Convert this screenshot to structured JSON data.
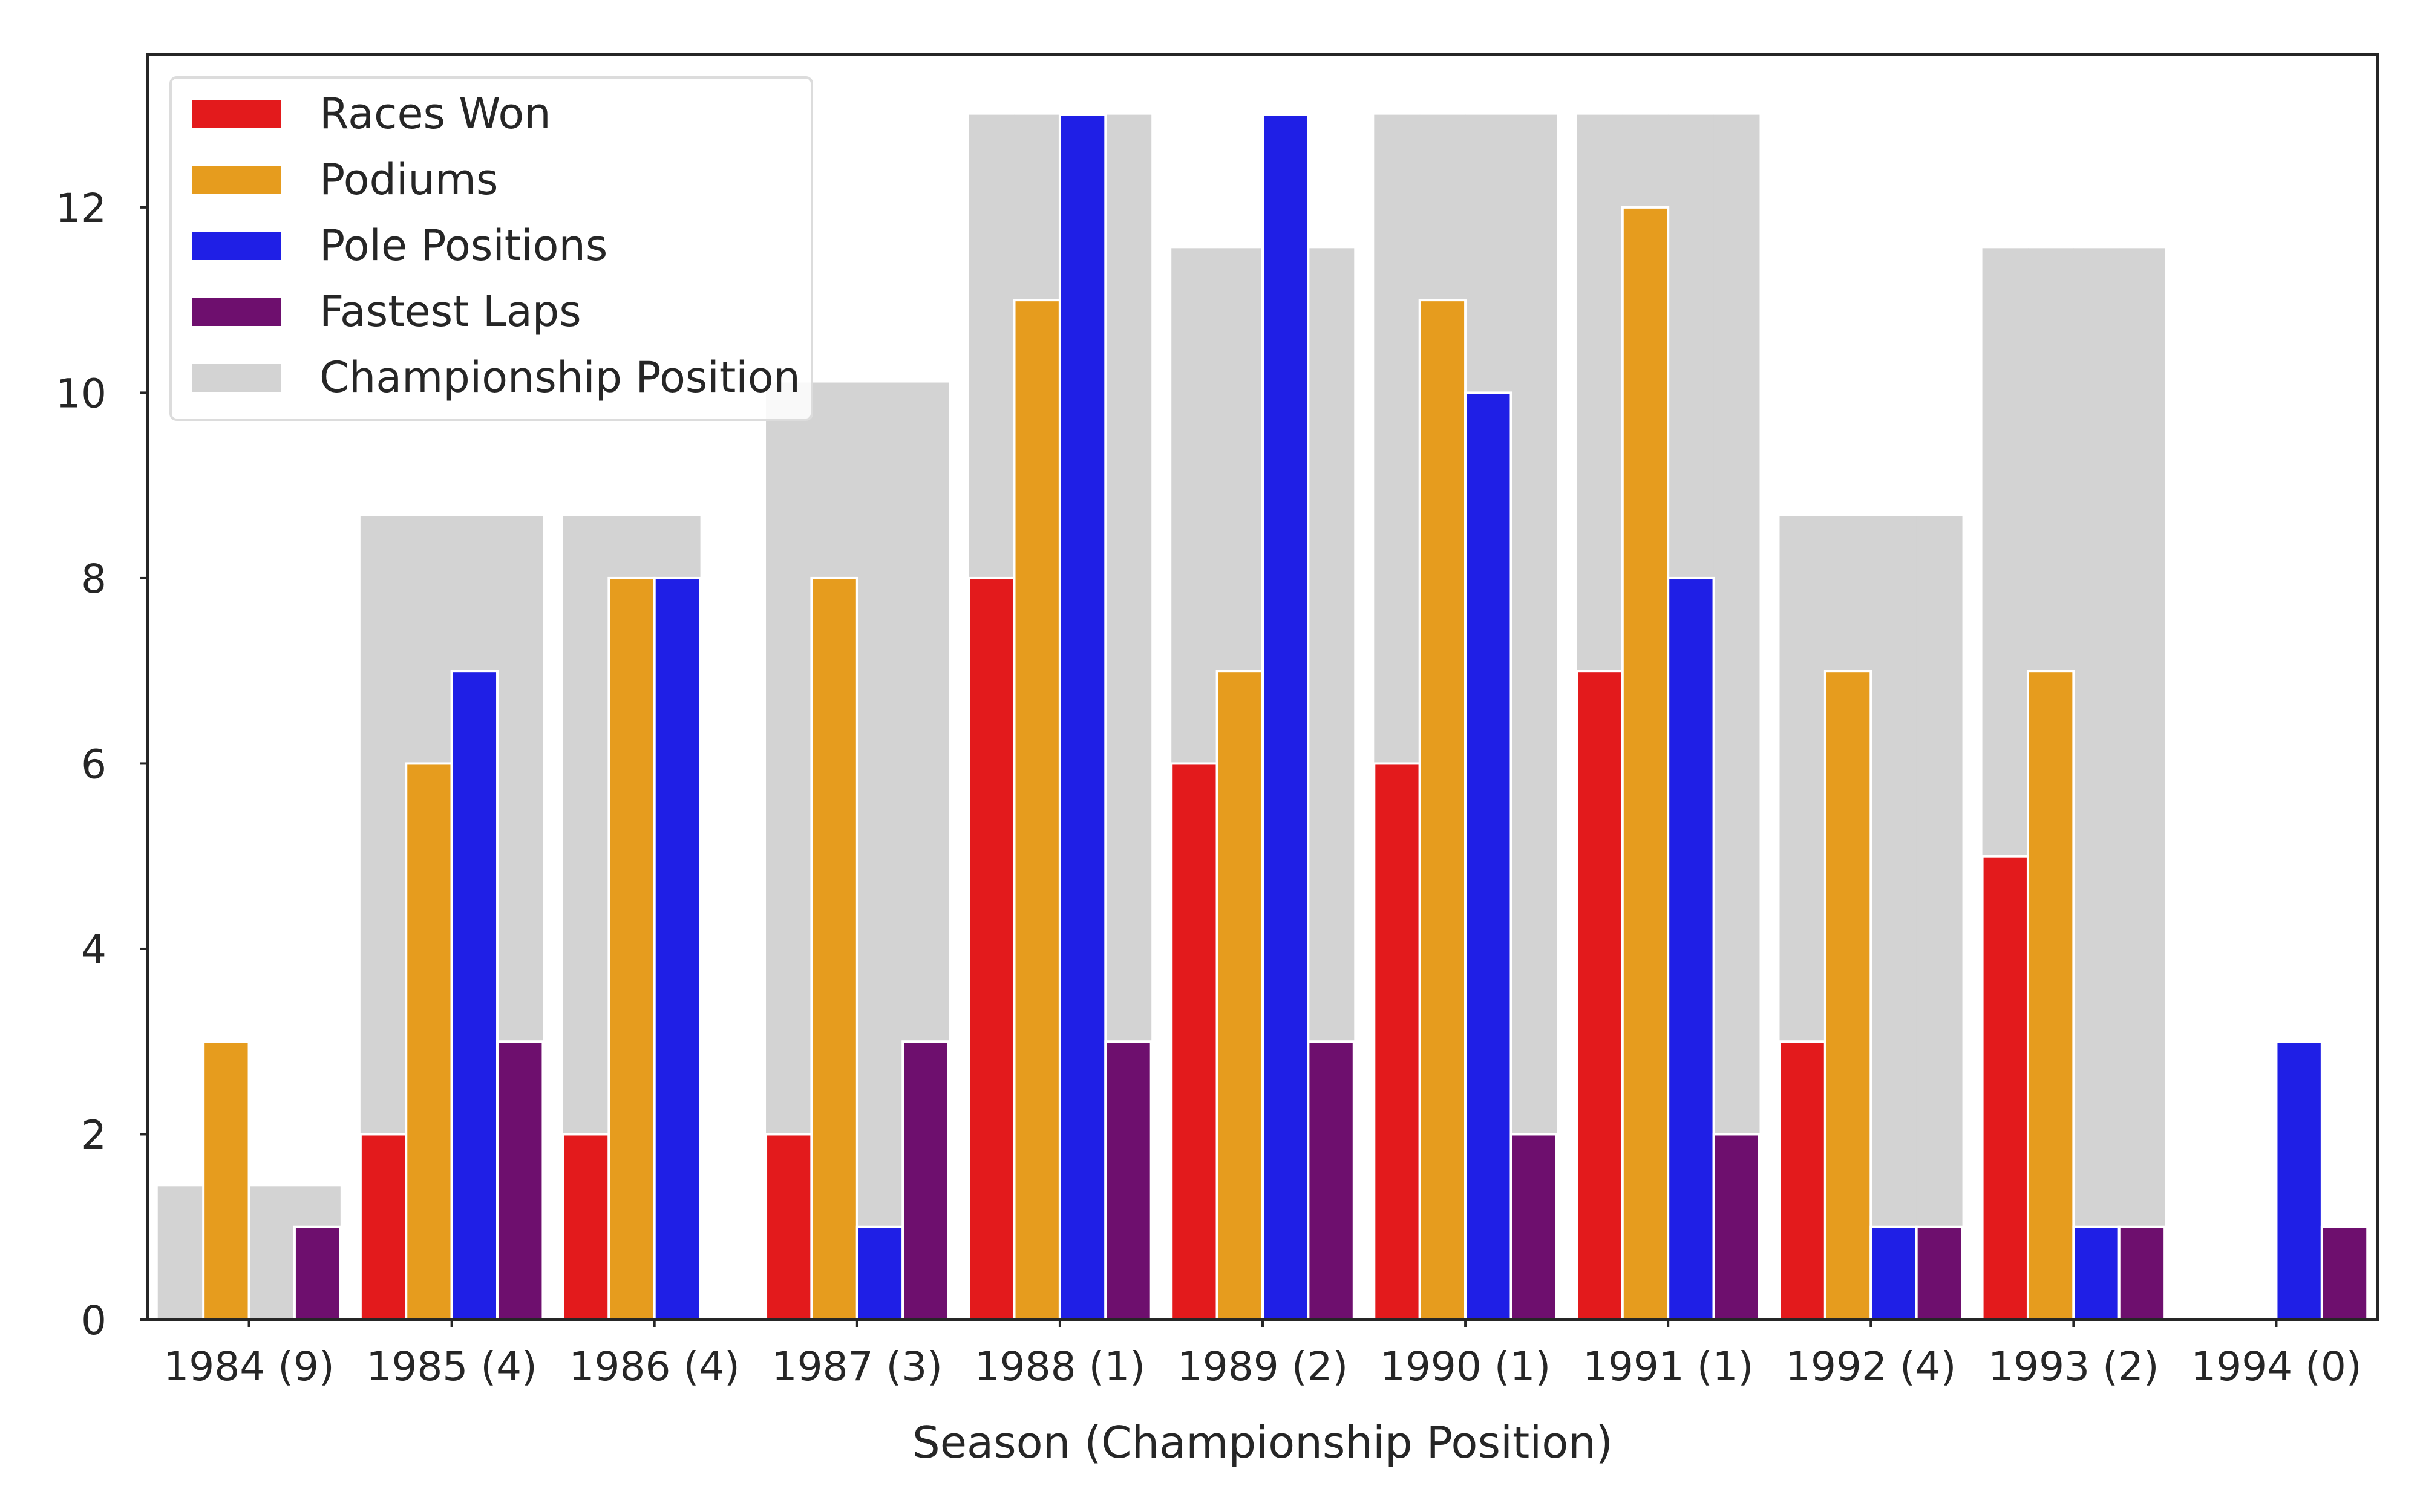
{
  "chart_data": {
    "type": "bar",
    "title": "",
    "xlabel": "Season (Championship Position)",
    "ylabel": "",
    "ylim": [
      0,
      13.65
    ],
    "yticks": [
      0,
      2,
      4,
      6,
      8,
      10,
      12
    ],
    "grid": false,
    "legend_position": "top-left",
    "categories": [
      "1984 (9)",
      "1985 (4)",
      "1986 (4)",
      "1987 (3)",
      "1988 (1)",
      "1989 (2)",
      "1990 (1)",
      "1991 (1)",
      "1992 (4)",
      "1993 (2)",
      "1994 (0)"
    ],
    "background_series": {
      "name": "Championship Position",
      "color": "#d3d3d3",
      "values": [
        1.44,
        8.67,
        8.67,
        10.11,
        13.0,
        11.56,
        13.0,
        13.0,
        8.67,
        11.56,
        0
      ],
      "gaps": [
        [
          1
        ],
        [],
        [
          3
        ],
        [],
        [],
        [],
        [],
        [],
        [],
        [],
        []
      ]
    },
    "series": [
      {
        "name": "Races Won",
        "color": "#e31a1c",
        "values": [
          0,
          2,
          2,
          2,
          8,
          6,
          6,
          7,
          3,
          5,
          0
        ]
      },
      {
        "name": "Podiums",
        "color": "#e69c1e",
        "values": [
          3,
          6,
          8,
          8,
          11,
          7,
          11,
          12,
          7,
          7,
          0
        ]
      },
      {
        "name": "Pole Positions",
        "color": "#1f1fe6",
        "values": [
          0,
          7,
          8,
          1,
          13,
          13,
          10,
          8,
          1,
          1,
          3
        ]
      },
      {
        "name": "Fastest Laps",
        "color": "#6e0f6e",
        "values": [
          1,
          3,
          0,
          3,
          3,
          3,
          2,
          2,
          1,
          1,
          1
        ]
      }
    ]
  }
}
